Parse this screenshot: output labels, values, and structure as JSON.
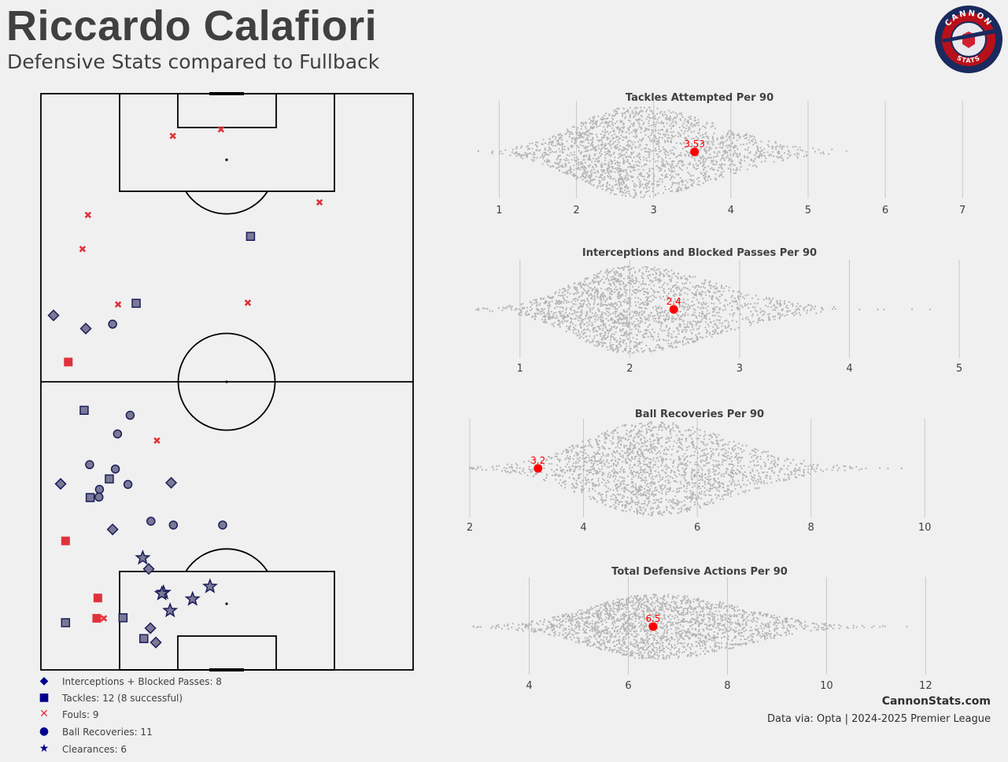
{
  "header": {
    "title": "Riccardo Calafiori",
    "subtitle": "Defensive Stats compared to Fullback"
  },
  "logo": {
    "top_text": "CANNON",
    "bottom_text": "STATS"
  },
  "legend": [
    {
      "symbol": "diamond",
      "label": "Interceptions + Blocked Passes: 8"
    },
    {
      "symbol": "square",
      "label": "Tackles: 12 (8 successful)"
    },
    {
      "symbol": "x",
      "label": "Fouls: 9"
    },
    {
      "symbol": "circle",
      "label": "Ball Recoveries: 11"
    },
    {
      "symbol": "star",
      "label": "Clearances: 6"
    }
  ],
  "footer": {
    "site": "CannonStats.com",
    "source": "Data via: Opta | 2024-2025 Premier League"
  },
  "colors": {
    "background": "#f0f0f0",
    "marker_fill": "#7a7a95",
    "marker_edge": "#1c1c5e",
    "unsuccessful": "#e0323c",
    "highlight": "#ff0000",
    "swarm": "#b5b5b5",
    "legend_symbol": "#00008b"
  },
  "chart_data": [
    {
      "type": "scatter",
      "title": "",
      "pitch": {
        "length": 105,
        "width": 68,
        "orientation": "vertical",
        "attacking": "up"
      },
      "actions": [
        {
          "type": "foul",
          "x": 97.3,
          "y": 24.1
        },
        {
          "type": "foul",
          "x": 98.5,
          "y": 32.9
        },
        {
          "type": "foul",
          "x": 85.2,
          "y": 50.9
        },
        {
          "type": "foul",
          "x": 82.9,
          "y": 8.6
        },
        {
          "type": "foul",
          "x": 76.7,
          "y": 7.6
        },
        {
          "type": "foul",
          "x": 66.6,
          "y": 14.1
        },
        {
          "type": "foul",
          "x": 66.9,
          "y": 37.8
        },
        {
          "type": "foul",
          "x": 41.8,
          "y": 21.2
        },
        {
          "type": "foul",
          "x": 9.4,
          "y": 11.5
        },
        {
          "type": "tackle",
          "x": 79.0,
          "y": 38.3,
          "success": true
        },
        {
          "type": "tackle",
          "x": 66.8,
          "y": 17.4,
          "success": true
        },
        {
          "type": "tackle",
          "x": 56.1,
          "y": 5.0,
          "success": false
        },
        {
          "type": "tackle",
          "x": 47.3,
          "y": 7.9,
          "success": true
        },
        {
          "type": "tackle",
          "x": 34.8,
          "y": 12.5,
          "success": true
        },
        {
          "type": "tackle",
          "x": 31.4,
          "y": 9.0,
          "success": true
        },
        {
          "type": "tackle",
          "x": 23.5,
          "y": 4.5,
          "success": false
        },
        {
          "type": "tackle",
          "x": 13.1,
          "y": 10.4,
          "success": false
        },
        {
          "type": "tackle",
          "x": 9.5,
          "y": 15.0,
          "success": true
        },
        {
          "type": "tackle",
          "x": 9.4,
          "y": 10.2,
          "success": false
        },
        {
          "type": "tackle",
          "x": 8.6,
          "y": 4.5,
          "success": true
        },
        {
          "type": "tackle",
          "x": 5.7,
          "y": 18.8,
          "success": true
        },
        {
          "type": "interception",
          "x": 64.6,
          "y": 2.3
        },
        {
          "type": "interception",
          "x": 62.2,
          "y": 8.2
        },
        {
          "type": "interception",
          "x": 33.9,
          "y": 3.6
        },
        {
          "type": "interception",
          "x": 34.1,
          "y": 23.8
        },
        {
          "type": "interception",
          "x": 25.6,
          "y": 13.1
        },
        {
          "type": "interception",
          "x": 18.4,
          "y": 19.7
        },
        {
          "type": "interception",
          "x": 7.6,
          "y": 20.0
        },
        {
          "type": "interception",
          "x": 5.0,
          "y": 21.0
        },
        {
          "type": "recovery",
          "x": 63.0,
          "y": 13.1
        },
        {
          "type": "recovery",
          "x": 46.4,
          "y": 16.3
        },
        {
          "type": "recovery",
          "x": 43.0,
          "y": 14.0
        },
        {
          "type": "recovery",
          "x": 37.4,
          "y": 8.9
        },
        {
          "type": "recovery",
          "x": 36.6,
          "y": 13.6
        },
        {
          "type": "recovery",
          "x": 33.8,
          "y": 15.9
        },
        {
          "type": "recovery",
          "x": 32.9,
          "y": 10.7
        },
        {
          "type": "recovery",
          "x": 31.5,
          "y": 10.6
        },
        {
          "type": "recovery",
          "x": 27.1,
          "y": 20.1
        },
        {
          "type": "recovery",
          "x": 26.4,
          "y": 24.2
        },
        {
          "type": "recovery",
          "x": 26.4,
          "y": 33.2
        },
        {
          "type": "clearance",
          "x": 20.4,
          "y": 18.6
        },
        {
          "type": "clearance",
          "x": 14.1,
          "y": 22.4
        },
        {
          "type": "clearance",
          "x": 13.9,
          "y": 22.1
        },
        {
          "type": "clearance",
          "x": 15.2,
          "y": 30.9
        },
        {
          "type": "clearance",
          "x": 10.8,
          "y": 23.6
        },
        {
          "type": "clearance",
          "x": 12.9,
          "y": 27.7
        }
      ]
    },
    {
      "type": "scatter",
      "title": "Tackles Attempted Per 90",
      "xlim": [
        0.7,
        7.1
      ],
      "xticks": [
        1,
        2,
        3,
        4,
        5,
        6,
        7
      ],
      "distribution": {
        "center": 2.75,
        "min": 0.72,
        "max": 6.88,
        "count": 2000,
        "skew": "right"
      },
      "player_value": 3.53,
      "player_label": "3.53"
    },
    {
      "type": "scatter",
      "title": "Interceptions and Blocked Passes Per 90",
      "xlim": [
        0.6,
        5.1
      ],
      "xticks": [
        1,
        2,
        3,
        4,
        5
      ],
      "distribution": {
        "center": 2.0,
        "min": 0.6,
        "max": 5.0,
        "count": 2000,
        "skew": "right"
      },
      "player_value": 2.4,
      "player_label": "2.4"
    },
    {
      "type": "scatter",
      "title": "Ball Recoveries Per 90",
      "xlim": [
        2.0,
        10.8
      ],
      "xticks": [
        2,
        4,
        6,
        8,
        10
      ],
      "distribution": {
        "center": 5.2,
        "min": 2.0,
        "max": 10.7,
        "count": 2000,
        "skew": "right"
      },
      "player_value": 3.2,
      "player_label": "3.2"
    },
    {
      "type": "scatter",
      "title": "Total Defensive Actions Per 90",
      "xlim": [
        2.8,
        12.9
      ],
      "xticks": [
        4,
        6,
        8,
        10,
        12
      ],
      "distribution": {
        "center": 6.6,
        "min": 2.85,
        "max": 12.85,
        "count": 2000,
        "skew": "right"
      },
      "player_value": 6.5,
      "player_label": "6.5"
    }
  ]
}
